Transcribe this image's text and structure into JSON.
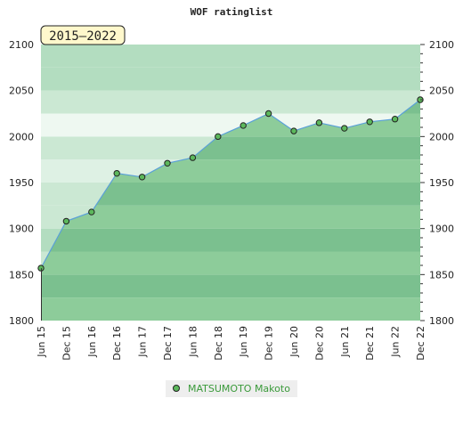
{
  "chart_data": {
    "type": "area",
    "title": "WOF ratinglist",
    "period_label": "2015–2022",
    "x_labels": [
      "Jun 15",
      "Dec 15",
      "Jun 16",
      "Dec 16",
      "Jun 17",
      "Dec 17",
      "Jun 18",
      "Dec 18",
      "Jun 19",
      "Dec 19",
      "Jun 20",
      "Dec 20",
      "Jun 21",
      "Dec 21",
      "Jun 22",
      "Dec 22"
    ],
    "series": [
      {
        "name": "MATSUMOTO Makoto",
        "values": [
          1857,
          1908,
          1918,
          1960,
          1956,
          1971,
          1977,
          2000,
          2012,
          2025,
          2006,
          2015,
          2009,
          2016,
          2019,
          2040
        ]
      }
    ],
    "ylim": [
      1800,
      2100
    ],
    "y_ticks": [
      1800,
      1850,
      1900,
      1950,
      2000,
      2050,
      2100
    ],
    "y_ticks_right": true,
    "grid": false,
    "legend_position": "bottom-center",
    "colors": {
      "line": "#5aa0d8",
      "marker_fill": "#5cb85c",
      "marker_stroke": "#222222",
      "legend_text": "#3a9a3a",
      "badge_fill": "#fff8cc",
      "area_under": [
        "#8dcc9a",
        "#7bc08f"
      ],
      "area_over": [
        "#b3ddc0",
        "#cbe8d3",
        "#def1e4",
        "#eef8f1"
      ]
    }
  }
}
